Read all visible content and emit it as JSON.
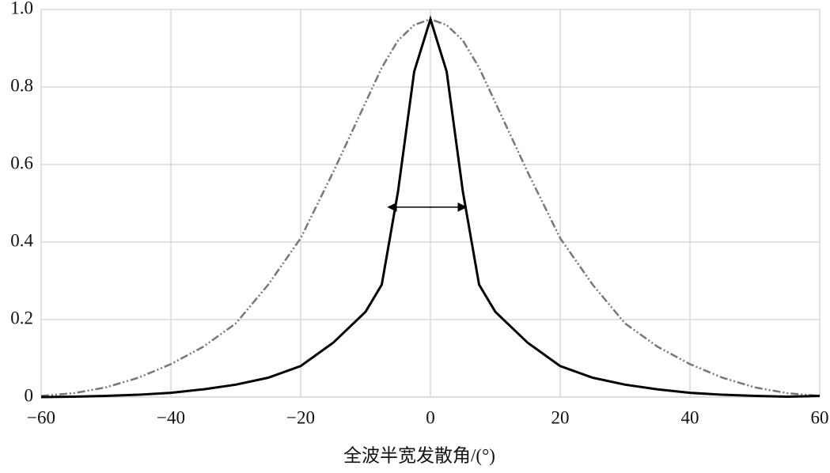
{
  "chart_data": {
    "type": "line",
    "x_label": "全波半宽发散角/(°)",
    "x": [
      -60,
      -55,
      -50,
      -45,
      -40,
      -35,
      -30,
      -25,
      -20,
      -15,
      -12.5,
      -10,
      -7.5,
      -5,
      -2.5,
      0,
      2.5,
      5,
      7.5,
      10,
      12.5,
      15,
      20,
      25,
      30,
      35,
      40,
      45,
      50,
      55,
      60
    ],
    "series": [
      {
        "color": "#777777",
        "style": "dash-dot-dot",
        "values": [
          0.003,
          0.01,
          0.025,
          0.05,
          0.085,
          0.13,
          0.19,
          0.29,
          0.41,
          0.58,
          0.67,
          0.76,
          0.85,
          0.92,
          0.96,
          0.975,
          0.96,
          0.92,
          0.85,
          0.76,
          0.67,
          0.58,
          0.41,
          0.29,
          0.19,
          0.13,
          0.085,
          0.05,
          0.025,
          0.01,
          0.003
        ]
      },
      {
        "color": "#000000",
        "style": "solid",
        "values": [
          0,
          0.001,
          0.003,
          0.006,
          0.011,
          0.02,
          0.032,
          0.05,
          0.08,
          0.14,
          0.18,
          0.22,
          0.29,
          0.53,
          0.84,
          0.975,
          0.84,
          0.53,
          0.29,
          0.22,
          0.18,
          0.14,
          0.08,
          0.05,
          0.032,
          0.02,
          0.011,
          0.006,
          0.003,
          0.001,
          0.003
        ]
      }
    ],
    "arrow": {
      "x": [
        -6.5,
        5.5
      ],
      "y": 0.49
    },
    "xlim": [
      -60,
      60
    ],
    "xticks": [
      {
        "value": -60,
        "label": "−60"
      },
      {
        "value": -40,
        "label": "−40"
      },
      {
        "value": -20,
        "label": "−20"
      },
      0,
      20,
      40,
      60
    ],
    "ylim": [
      0,
      1
    ],
    "yticks": [
      0,
      0.2,
      0.4,
      0.6,
      0.8,
      {
        "value": 1,
        "label": "1.0"
      }
    ],
    "grid": true
  }
}
